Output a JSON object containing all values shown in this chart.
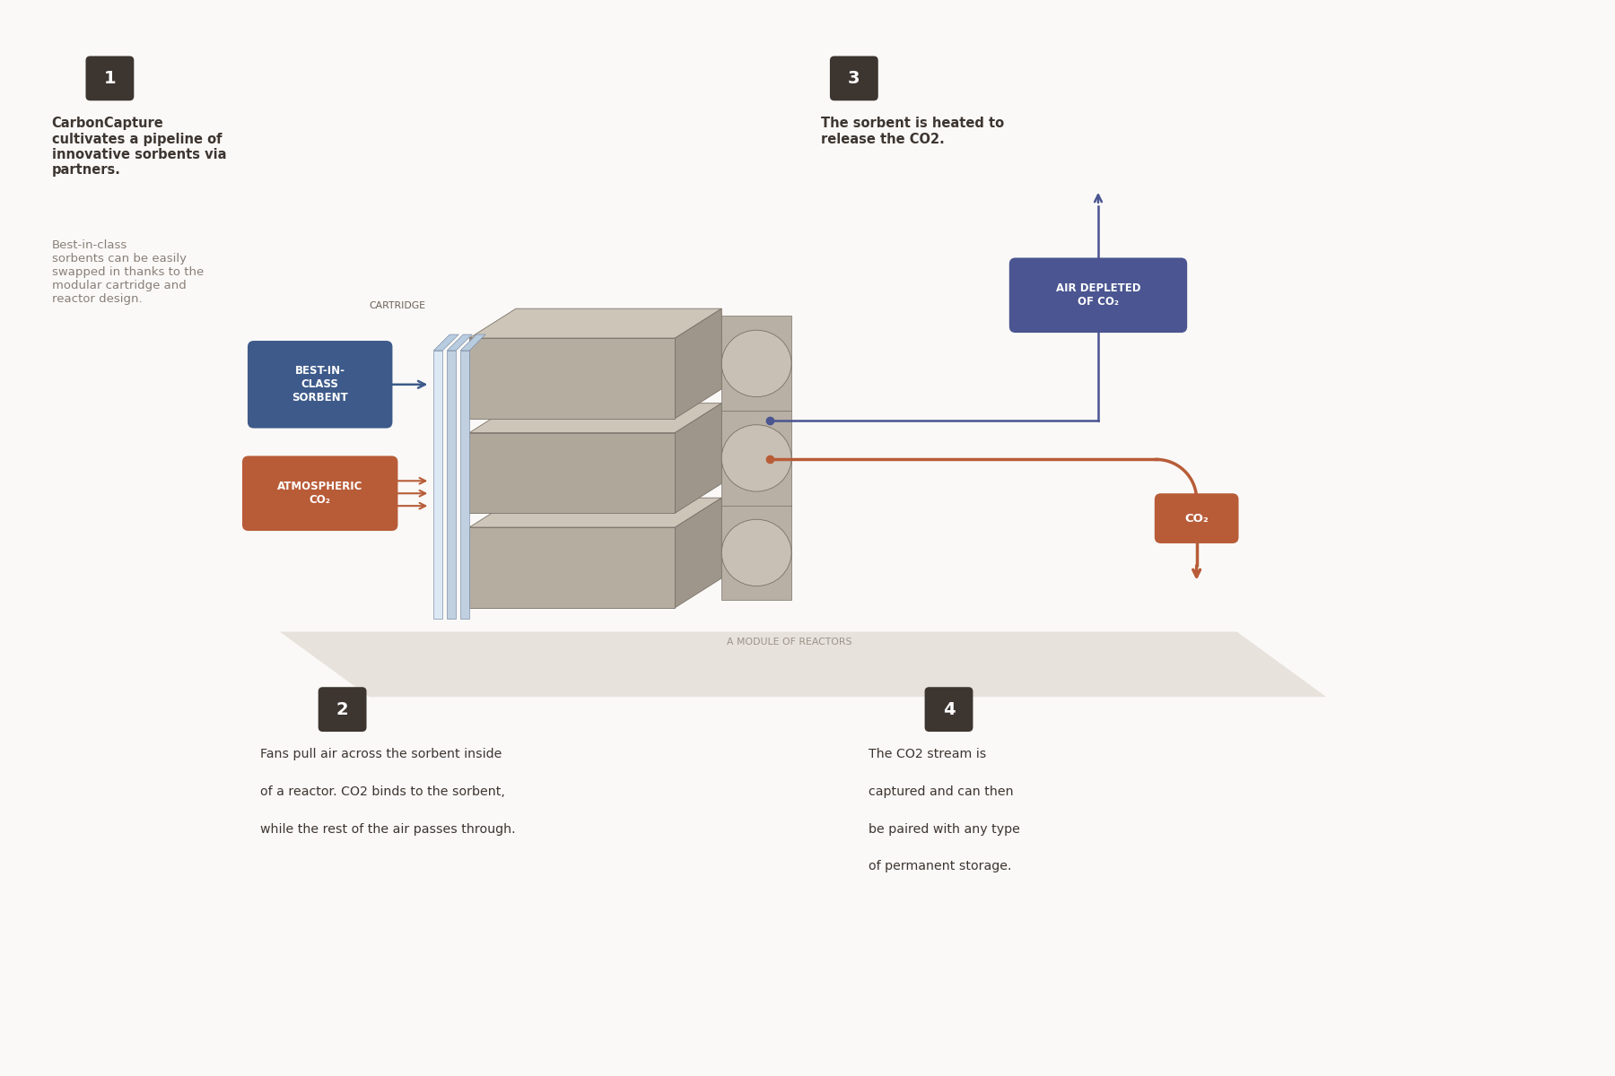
{
  "bg_color": "#faf9f7",
  "dark_box_color": "#3d3530",
  "blue_box_color": "#4a5591",
  "orange_box_color": "#b85c38",
  "sorbent_box_color": "#3d5a8a",
  "text_dark": "#3d3530",
  "text_gray": "#8a7f78",
  "arrow_blue": "#4a5591",
  "arrow_orange": "#b85c38",
  "reactor_front_a": "#b5ada0",
  "reactor_front_b": "#afa79a",
  "reactor_top": "#cdc5b8",
  "reactor_right": "#9e968a",
  "reactor_fan_body": "#b8b0a4",
  "reactor_fan_ellipse": "#c8c0b4",
  "reactor_edge": "#7a7268",
  "platform_color": "#e8e2dc",
  "cartridge_plate_0": "#dce8f4",
  "cartridge_plate_1": "#c0d0e0",
  "cartridge_plate_top": "#b8cce0",
  "step1_bold": "CarbonCapture\ncultivates a pipeline of\ninnovative sorbents via\npartners.",
  "step1_light": "Best-in-class\nsorbents can be easily\nswapped in thanks to the\nmodular cartridge and\nreactor design.",
  "step2_line1": "Fans pull air across the sorbent inside",
  "step2_line2": "of a reactor. CO",
  "step2_sub2": "2",
  "step2_line2b": " binds to the sorbent,",
  "step2_line3": "while the rest of the air passes through.",
  "step3_line1": "The sorbent is heated to",
  "step3_line2": "release the CO",
  "step3_sub": "2",
  "step3_line2b": ".",
  "step4_line1": "The CO",
  "step4_sub1": "2",
  "step4_line1b": " stream is",
  "step4_line2": "captured and can then",
  "step4_line3": "be paired with any type",
  "step4_line4": "of permanent storage.",
  "cartridge_label": "CARTRIDGE",
  "sorbent_label": "BEST-IN-\nCLASS\nSORBENT",
  "atm_label": "ATMOSPHERIC\nCO₂",
  "air_depleted_label": "AIR DEPLETED\nOF CO₂",
  "co2_label": "CO₂",
  "module_label": "A MODULE OF REACTORS",
  "label_1": "1",
  "label_2": "2",
  "label_3": "3",
  "label_4": "4"
}
